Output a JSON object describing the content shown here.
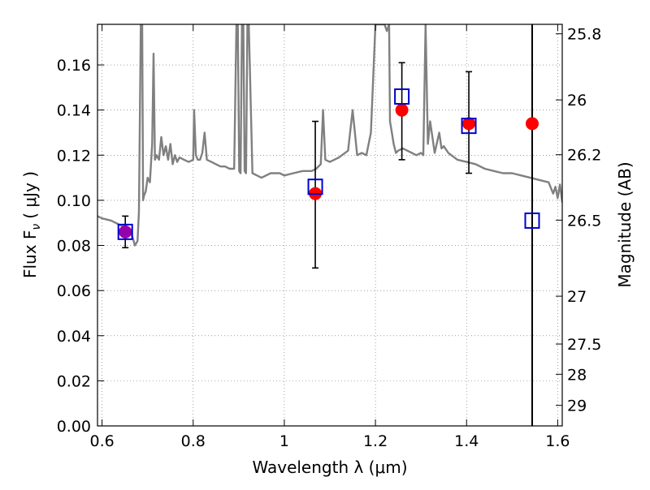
{
  "chart_data": {
    "type": "scatter",
    "title": "",
    "xlabel": "Wavelength  λ (μm)",
    "ylabel": "Flux  F",
    "ylabel_sub": "ν",
    "ylabel_units": "( μJy )",
    "y2label": "Magnitude (AB)",
    "xlim": [
      0.59,
      1.61
    ],
    "ylim": [
      0.0,
      0.178
    ],
    "grid": true,
    "x_ticks": [
      0.6,
      0.8,
      1.0,
      1.2,
      1.4,
      1.6
    ],
    "x_tick_labels": [
      "0.6",
      "0.8",
      "1",
      "1.2",
      "1.4",
      "1.6"
    ],
    "y_ticks": [
      0.0,
      0.02,
      0.04,
      0.06,
      0.08,
      0.1,
      0.12,
      0.14,
      0.16
    ],
    "y_tick_labels": [
      "0.00",
      "0.02",
      "0.04",
      "0.06",
      "0.08",
      "0.10",
      "0.12",
      "0.14",
      "0.16"
    ],
    "y2_ticks": [
      {
        "label": "25.8",
        "flux": 0.1738
      },
      {
        "label": "26",
        "flux": 0.1445
      },
      {
        "label": "26.2",
        "flux": 0.1202
      },
      {
        "label": "26.5",
        "flux": 0.0912
      },
      {
        "label": "27",
        "flux": 0.0575
      },
      {
        "label": "27.5",
        "flux": 0.0363
      },
      {
        "label": "28",
        "flux": 0.0229
      },
      {
        "label": "29",
        "flux": 0.0091
      }
    ],
    "series": [
      {
        "style": "line",
        "color": "#808080",
        "x": [
          0.59,
          0.6,
          0.62,
          0.64,
          0.66,
          0.668,
          0.672,
          0.675,
          0.678,
          0.681,
          0.685,
          0.688,
          0.69,
          0.692,
          0.696,
          0.7,
          0.705,
          0.71,
          0.713,
          0.716,
          0.72,
          0.725,
          0.73,
          0.735,
          0.74,
          0.745,
          0.75,
          0.755,
          0.76,
          0.765,
          0.77,
          0.78,
          0.79,
          0.8,
          0.802,
          0.806,
          0.81,
          0.815,
          0.82,
          0.825,
          0.83,
          0.84,
          0.85,
          0.86,
          0.87,
          0.88,
          0.89,
          0.895,
          0.898,
          0.901,
          0.904,
          0.907,
          0.91,
          0.913,
          0.916,
          0.919,
          0.922,
          0.93,
          0.94,
          0.95,
          0.97,
          0.99,
          1.0,
          1.02,
          1.04,
          1.06,
          1.07,
          1.08,
          1.085,
          1.09,
          1.1,
          1.12,
          1.14,
          1.15,
          1.16,
          1.17,
          1.18,
          1.19,
          1.2,
          1.205,
          1.21,
          1.215,
          1.22,
          1.225,
          1.23,
          1.232,
          1.236,
          1.24,
          1.245,
          1.25,
          1.26,
          1.27,
          1.28,
          1.29,
          1.3,
          1.305,
          1.31,
          1.315,
          1.32,
          1.325,
          1.33,
          1.34,
          1.345,
          1.35,
          1.36,
          1.38,
          1.4,
          1.42,
          1.44,
          1.46,
          1.48,
          1.5,
          1.52,
          1.54,
          1.56,
          1.58,
          1.59,
          1.595,
          1.6,
          1.605,
          1.61
        ],
        "y": [
          0.093,
          0.092,
          0.091,
          0.089,
          0.087,
          0.083,
          0.08,
          0.081,
          0.082,
          0.095,
          0.178,
          0.178,
          0.1,
          0.102,
          0.104,
          0.11,
          0.108,
          0.125,
          0.165,
          0.118,
          0.12,
          0.118,
          0.128,
          0.12,
          0.124,
          0.118,
          0.125,
          0.116,
          0.12,
          0.117,
          0.119,
          0.118,
          0.117,
          0.118,
          0.14,
          0.12,
          0.118,
          0.118,
          0.121,
          0.13,
          0.118,
          0.117,
          0.116,
          0.115,
          0.115,
          0.114,
          0.114,
          0.178,
          0.178,
          0.113,
          0.112,
          0.178,
          0.178,
          0.113,
          0.112,
          0.178,
          0.178,
          0.112,
          0.111,
          0.11,
          0.112,
          0.112,
          0.111,
          0.112,
          0.113,
          0.113,
          0.114,
          0.116,
          0.14,
          0.118,
          0.117,
          0.119,
          0.122,
          0.14,
          0.12,
          0.121,
          0.12,
          0.13,
          0.178,
          0.178,
          0.178,
          0.178,
          0.178,
          0.175,
          0.178,
          0.135,
          0.13,
          0.125,
          0.121,
          0.122,
          0.123,
          0.122,
          0.121,
          0.12,
          0.121,
          0.12,
          0.178,
          0.125,
          0.135,
          0.128,
          0.121,
          0.13,
          0.123,
          0.124,
          0.121,
          0.118,
          0.117,
          0.116,
          0.114,
          0.113,
          0.112,
          0.112,
          0.111,
          0.11,
          0.109,
          0.108,
          0.103,
          0.106,
          0.101,
          0.107,
          0.099
        ]
      },
      {
        "style": "markers",
        "marker": "circle",
        "color": "#ff0000",
        "x": [
          1.068,
          1.258,
          1.405,
          1.544
        ],
        "y": [
          0.103,
          0.14,
          0.134,
          0.134
        ]
      },
      {
        "style": "markers",
        "marker": "circle",
        "color": "#9400aa",
        "x": [
          0.651
        ],
        "y": [
          0.086
        ]
      },
      {
        "style": "markers",
        "marker": "open-square",
        "color": "#0000cc",
        "x": [
          0.651,
          1.068,
          1.258,
          1.405,
          1.544
        ],
        "y": [
          0.086,
          0.106,
          0.146,
          0.133,
          0.091
        ]
      }
    ],
    "error_bars": [
      {
        "x": 0.651,
        "y_low": 0.079,
        "y_high": 0.093
      },
      {
        "x": 1.068,
        "y_low": 0.07,
        "y_high": 0.135
      },
      {
        "x": 1.258,
        "y_low": 0.118,
        "y_high": 0.161
      },
      {
        "x": 1.405,
        "y_low": 0.112,
        "y_high": 0.157
      }
    ],
    "vertical_lines": [
      1.544
    ]
  }
}
